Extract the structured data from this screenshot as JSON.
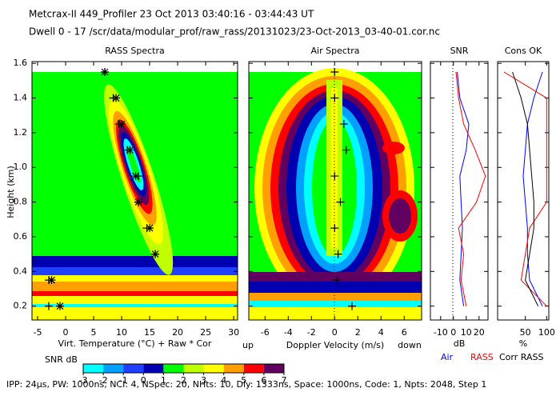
{
  "header": {
    "line1": "Metcrax-II  449_Profiler  23 Oct 2013  03:40:16 - 03:44:43 UT",
    "line2": "Dwell  0 - 17  /scr/data/modular_prof/raw_rass/20131023/23-Oct-2013_03-40-01.cor.nc"
  },
  "chart_data": [
    {
      "type": "scatter",
      "title": "RASS Spectra",
      "x_label": "Virt. Temperature (°C)  + Raw  * Cor",
      "y_label": "Height (km)",
      "xlim": [
        -6,
        30.7
      ],
      "xticks": [
        -5,
        0,
        5,
        10,
        15,
        20,
        25,
        30
      ],
      "ylim": [
        0.12,
        1.61
      ],
      "yticks": [
        0.2,
        0.4,
        0.6,
        0.8,
        {
          "value": 1,
          "label": "1.0"
        },
        1.2,
        1.4,
        1.6
      ],
      "y": [
        0.2,
        0.35,
        0.5,
        0.65,
        0.8,
        0.95,
        1.1,
        1.25,
        1.4,
        1.55
      ],
      "series": [
        {
          "name": "Raw",
          "marker": "+",
          "color": "#000000",
          "values": [
            -3,
            -3,
            16,
            14.5,
            13,
            13,
            11,
            9.5,
            8.5,
            7
          ]
        },
        {
          "name": "Cor",
          "marker": "*",
          "color": "#000000",
          "values": [
            -1,
            -2.5,
            16,
            15,
            13,
            12.5,
            11.5,
            10,
            9,
            7
          ]
        }
      ]
    },
    {
      "type": "scatter",
      "title": "Air Spectra",
      "x_label": "Doppler Velocity (m/s)",
      "left_note": "up",
      "right_note": "down",
      "xlim": [
        -7.4,
        7.5
      ],
      "xticks": [
        -6,
        -4,
        -2,
        0,
        2,
        4,
        6
      ],
      "y": [
        0.2,
        0.35,
        0.5,
        0.65,
        0.8,
        0.95,
        1.1,
        1.25,
        1.4,
        1.55
      ],
      "series": [
        {
          "marker": "+",
          "color": "#000000",
          "values": [
            1.5,
            0.2,
            0.3,
            0,
            0.5,
            0,
            1,
            0.8,
            0,
            0
          ]
        }
      ]
    },
    {
      "type": "line",
      "title": "SNR",
      "x_label": "dB",
      "xlim": [
        -18,
        27
      ],
      "xticks": [
        -10,
        0,
        10,
        20
      ],
      "y": [
        0.2,
        0.35,
        0.5,
        0.65,
        0.8,
        0.95,
        1.1,
        1.25,
        1.4,
        1.55
      ],
      "series": [
        {
          "name": "Air",
          "color": "#0000ff",
          "values": [
            8,
            5,
            6,
            7,
            6,
            5,
            10,
            12,
            5,
            3
          ]
        },
        {
          "name": "RASS",
          "color": "#ff0000",
          "values": [
            10,
            6,
            8,
            4,
            18,
            25,
            17,
            8,
            4,
            2
          ]
        }
      ]
    },
    {
      "type": "line",
      "title": "Cons OK",
      "x_label": "%",
      "xlim": [
        -15,
        105
      ],
      "xticks": [
        50,
        100
      ],
      "y": [
        0.2,
        0.35,
        0.5,
        0.65,
        0.8,
        0.95,
        1.1,
        1.25,
        1.4,
        1.55
      ],
      "series": [
        {
          "name": "Air",
          "color": "#0000ff",
          "values": [
            90,
            60,
            55,
            55,
            50,
            45,
            50,
            55,
            70,
            90
          ]
        },
        {
          "name": "RASS",
          "color": "#ff0000",
          "values": [
            100,
            40,
            50,
            60,
            100,
            100,
            100,
            100,
            100,
            0
          ]
        },
        {
          "name": "Corr RASS",
          "color": "#000000",
          "values": [
            80,
            50,
            60,
            70,
            70,
            65,
            60,
            55,
            40,
            20
          ]
        }
      ]
    }
  ],
  "colorbar": {
    "label": "SNR dB",
    "ticks": [
      -3,
      -2,
      -1,
      0,
      1,
      2,
      3,
      4,
      5,
      6,
      7
    ],
    "colors": [
      "#00ffff",
      "#00a0ff",
      "#2040ff",
      "#0000b0",
      "#00ff00",
      "#c0ff00",
      "#ffff00",
      "#ffa000",
      "#ff0000",
      "#600060"
    ]
  },
  "footer": "IPP: 24μs, PW: 1000ns, NCI: 4, NSpec: 20, NHts: 10, Dly: 1333ns, Space: 1000ns, Code: 1, Npts: 2048, Step 1"
}
